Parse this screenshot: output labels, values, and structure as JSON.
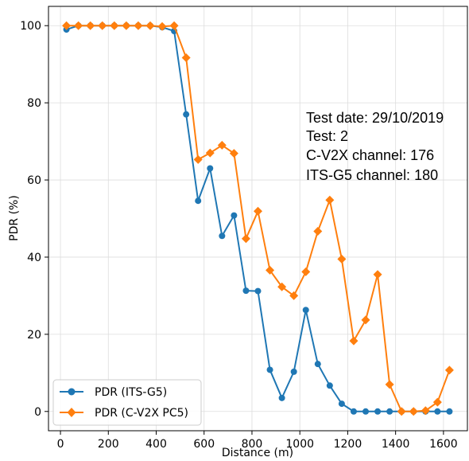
{
  "chart_data": {
    "type": "line",
    "xlabel": "Distance (m)",
    "ylabel": "PDR (%)",
    "xlim": [
      -50,
      1700
    ],
    "ylim": [
      -5,
      105
    ],
    "xticks": [
      0,
      200,
      400,
      600,
      800,
      1000,
      1200,
      1400,
      1600
    ],
    "yticks": [
      0,
      20,
      40,
      60,
      80,
      100
    ],
    "grid": true,
    "legend_position": "lower-left",
    "annotations": [
      "Test date: 29/10/2019",
      "Test: 2",
      "C-V2X channel: 176",
      "ITS-G5 channel: 180"
    ],
    "x": [
      25,
      75,
      125,
      175,
      225,
      275,
      325,
      375,
      425,
      475,
      525,
      575,
      625,
      675,
      725,
      775,
      825,
      875,
      925,
      975,
      1025,
      1075,
      1125,
      1175,
      1225,
      1275,
      1325,
      1375,
      1425,
      1475,
      1525,
      1575,
      1625
    ],
    "series": [
      {
        "name": "PDR (ITS-G5)",
        "color": "#1f77b4",
        "marker": "circle",
        "values": [
          99,
          100,
          100,
          100,
          100,
          100,
          100,
          100,
          99.6,
          98.6,
          77,
          54.6,
          63,
          45.5,
          50.8,
          31.3,
          31.2,
          10.8,
          3.5,
          10.3,
          26.3,
          12.3,
          6.7,
          2,
          0,
          0,
          0,
          0,
          0,
          0,
          0,
          0,
          0
        ]
      },
      {
        "name": "PDR (C-V2X PC5)",
        "color": "#ff7f0e",
        "marker": "diamond",
        "values": [
          100,
          100,
          100,
          100,
          100,
          100,
          100,
          100,
          99.8,
          100,
          91.7,
          65.3,
          67,
          69,
          66.9,
          44.8,
          51.9,
          36.6,
          32.3,
          30,
          36.2,
          46.7,
          54.8,
          39.5,
          18.3,
          23.7,
          35.5,
          7,
          0,
          0,
          0.2,
          2.4,
          10.7
        ]
      }
    ]
  }
}
